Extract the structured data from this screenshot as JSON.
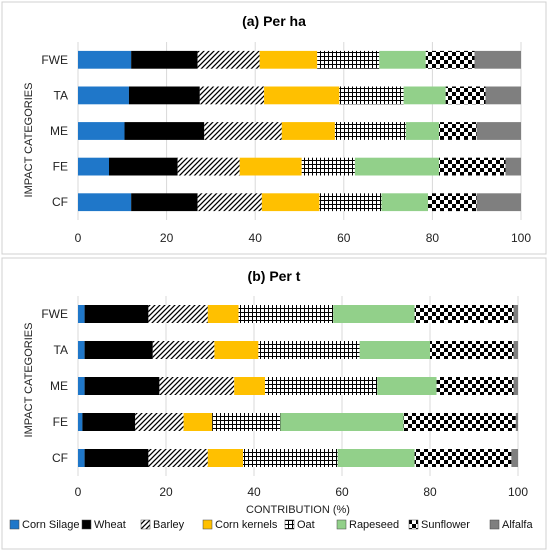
{
  "chart_data": [
    {
      "type": "bar",
      "orientation": "horizontal",
      "stacked": true,
      "title": "(a) Per ha",
      "ylabel": "IMPACT CATEGORIES",
      "xlabel": "",
      "xlim": [
        0,
        100
      ],
      "xticks": [
        "0",
        "20",
        "40",
        "60",
        "80",
        "100"
      ],
      "grid": true,
      "categories": [
        "FWE",
        "TA",
        "ME",
        "FE",
        "CF"
      ],
      "series": [
        {
          "name": "Corn Silage",
          "values": [
            12,
            11.5,
            10.5,
            7,
            12
          ]
        },
        {
          "name": "Wheat",
          "values": [
            15,
            16,
            18,
            15.5,
            15
          ]
        },
        {
          "name": "Barley",
          "values": [
            14,
            14.5,
            17.5,
            14,
            14.5
          ]
        },
        {
          "name": "Corn kernels",
          "values": [
            13,
            17,
            12,
            14,
            13
          ]
        },
        {
          "name": "Oat",
          "values": [
            14,
            14.5,
            16,
            12,
            14
          ]
        },
        {
          "name": "Rapeseed",
          "values": [
            10.5,
            9.5,
            7.5,
            19,
            10.5
          ]
        },
        {
          "name": "Sunflower",
          "values": [
            11,
            9,
            8.5,
            15,
            11
          ]
        },
        {
          "name": "Alfalfa",
          "values": [
            10.5,
            8,
            10,
            3.5,
            10
          ]
        }
      ]
    },
    {
      "type": "bar",
      "orientation": "horizontal",
      "stacked": true,
      "title": "(b) Per t",
      "ylabel": "IMPACT CATEGORIES",
      "xlabel": "CONTRIBUTION (%)",
      "xlim": [
        0,
        100
      ],
      "xticks": [
        "0",
        "20",
        "40",
        "60",
        "80",
        "100"
      ],
      "grid": true,
      "categories": [
        "FWE",
        "TA",
        "ME",
        "FE",
        "CF"
      ],
      "series": [
        {
          "name": "Corn Silage",
          "values": [
            1.5,
            1.5,
            1.5,
            1,
            1.5
          ]
        },
        {
          "name": "Wheat",
          "values": [
            14.5,
            15.5,
            17,
            12,
            14.5
          ]
        },
        {
          "name": "Barley",
          "values": [
            13.5,
            14,
            17,
            11,
            13.5
          ]
        },
        {
          "name": "Corn kernels",
          "values": [
            7,
            10,
            7,
            6.5,
            8
          ]
        },
        {
          "name": "Oat",
          "values": [
            21.5,
            23,
            25.5,
            15.5,
            21.5
          ]
        },
        {
          "name": "Rapeseed",
          "values": [
            18.5,
            16,
            13.5,
            28,
            17.5
          ]
        },
        {
          "name": "Sunflower",
          "values": [
            22.5,
            19,
            17.5,
            25.5,
            22
          ]
        },
        {
          "name": "Alfalfa",
          "values": [
            1,
            1,
            1,
            0.5,
            1.5
          ]
        }
      ]
    }
  ],
  "legend": {
    "placement": "bottom",
    "items": [
      {
        "label": "Corn Silage",
        "pattern": "solid-blue"
      },
      {
        "label": "Wheat",
        "pattern": "solid-black"
      },
      {
        "label": "Barley",
        "pattern": "diagonal-hatch"
      },
      {
        "label": "Corn kernels",
        "pattern": "solid-yellow"
      },
      {
        "label": "Oat",
        "pattern": "grid-hatch"
      },
      {
        "label": "Rapeseed",
        "pattern": "solid-green"
      },
      {
        "label": "Sunflower",
        "pattern": "checkerboard"
      },
      {
        "label": "Alfalfa",
        "pattern": "solid-gray"
      }
    ]
  },
  "colors": {
    "Corn Silage": "#1f77c9",
    "Wheat": "#000000",
    "Barley": "#ffffff",
    "Corn kernels": "#ffc000",
    "Oat": "#ffffff",
    "Rapeseed": "#92d08a",
    "Sunflower": "#ffffff",
    "Alfalfa": "#7f7f7f"
  }
}
